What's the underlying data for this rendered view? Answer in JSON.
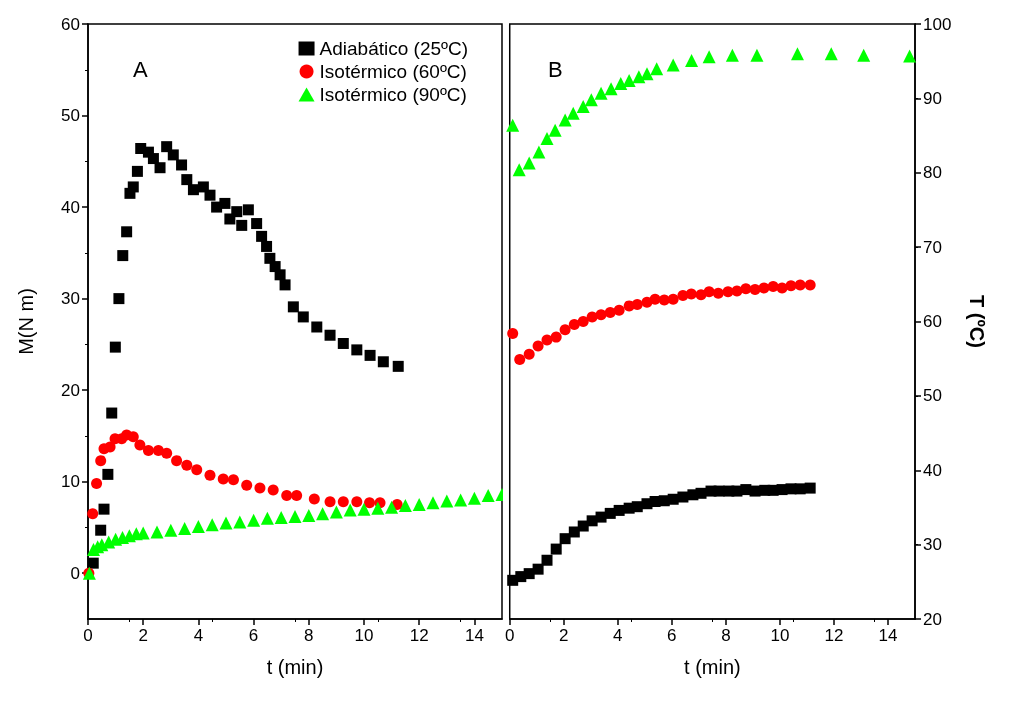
{
  "chart_data": [
    {
      "type": "scatter",
      "xlabel": "t (min)",
      "ylabel": "M(N m)",
      "xlim": [
        0,
        15
      ],
      "xticks": [
        0,
        2,
        4,
        6,
        8,
        10,
        12,
        14
      ],
      "ylim": [
        -5,
        60
      ],
      "yticks": [
        0,
        10,
        20,
        30,
        40,
        50,
        60
      ],
      "grid": false,
      "legend": "top right",
      "annotations": [
        "A"
      ],
      "series": [
        {
          "name": "Adiabático (25ºC)",
          "color": "#000000",
          "marker": "square",
          "x": [
            0.19,
            0.46,
            0.58,
            0.72,
            0.86,
            0.99,
            1.12,
            1.26,
            1.4,
            1.52,
            1.64,
            1.79,
            1.91,
            2.19,
            2.37,
            2.61,
            2.85,
            3.09,
            3.39,
            3.58,
            3.82,
            4.18,
            4.42,
            4.66,
            4.96,
            5.14,
            5.39,
            5.57,
            5.81,
            6.11,
            6.29,
            6.47,
            6.59,
            6.78,
            6.96,
            7.14,
            7.44,
            7.8,
            8.29,
            8.77,
            9.25,
            9.74,
            10.22,
            10.7,
            11.24
          ],
          "values": [
            1.1,
            4.7,
            7.0,
            10.8,
            17.5,
            24.7,
            30.0,
            34.7,
            37.3,
            41.5,
            42.2,
            43.9,
            46.4,
            46.0,
            45.3,
            44.3,
            46.6,
            45.7,
            44.6,
            43.0,
            41.9,
            42.2,
            41.3,
            40.0,
            40.4,
            38.7,
            39.5,
            38.0,
            39.7,
            38.2,
            36.8,
            35.7,
            34.4,
            33.5,
            32.6,
            31.5,
            29.1,
            28.0,
            26.9,
            26.0,
            25.1,
            24.4,
            23.8,
            23.1,
            22.6
          ]
        },
        {
          "name": "Isotérmico (60ºC)",
          "color": "#ff0000",
          "marker": "circle",
          "x": [
            0.03,
            0.17,
            0.31,
            0.46,
            0.58,
            0.8,
            0.98,
            1.22,
            1.4,
            1.64,
            1.88,
            2.19,
            2.55,
            2.85,
            3.21,
            3.58,
            3.94,
            4.42,
            4.9,
            5.27,
            5.75,
            6.23,
            6.71,
            7.2,
            7.56,
            8.2,
            8.77,
            9.25,
            9.74,
            10.2,
            10.58,
            11.2
          ],
          "values": [
            0,
            6.5,
            9.8,
            12.3,
            13.6,
            13.8,
            14.7,
            14.7,
            15.1,
            14.9,
            14.0,
            13.4,
            13.4,
            13.1,
            12.3,
            11.8,
            11.3,
            10.7,
            10.3,
            10.2,
            9.6,
            9.3,
            9.1,
            8.5,
            8.5,
            8.1,
            7.8,
            7.8,
            7.8,
            7.7,
            7.7,
            7.5
          ]
        },
        {
          "name": "Isotérmico (90ºC)",
          "color": "#00ff00",
          "marker": "triangle",
          "x": [
            0.05,
            0.2,
            0.35,
            0.5,
            0.75,
            1,
            1.25,
            1.5,
            1.75,
            2,
            2.5,
            3,
            3.5,
            4,
            4.5,
            5,
            5.5,
            6,
            6.5,
            7,
            7.5,
            8,
            8.5,
            9,
            9.5,
            10,
            10.5,
            11,
            11.5,
            12,
            12.5,
            13,
            13.5,
            14,
            14.5,
            15
          ],
          "values": [
            0,
            2.6,
            2.9,
            3.1,
            3.4,
            3.7,
            3.9,
            4.1,
            4.3,
            4.4,
            4.5,
            4.7,
            4.9,
            5.1,
            5.3,
            5.5,
            5.6,
            5.8,
            6.0,
            6.1,
            6.2,
            6.3,
            6.5,
            6.7,
            6.9,
            7.0,
            7.1,
            7.2,
            7.4,
            7.5,
            7.7,
            7.9,
            8.0,
            8.2,
            8.5,
            8.6
          ]
        }
      ]
    },
    {
      "type": "scatter",
      "xlabel": "t (min)",
      "ylabel": "T (ºC)",
      "xlim": [
        0,
        15
      ],
      "xticks": [
        0,
        2,
        4,
        6,
        8,
        10,
        12,
        14
      ],
      "ylim": [
        20,
        100
      ],
      "yticks": [
        20,
        30,
        40,
        50,
        60,
        70,
        80,
        90,
        100
      ],
      "grid": false,
      "annotations": [
        "B"
      ],
      "series": [
        {
          "color": "#000000",
          "marker": "square",
          "x": [
            0.11,
            0.41,
            0.72,
            1.05,
            1.38,
            1.72,
            2.05,
            2.39,
            2.72,
            3.05,
            3.38,
            3.72,
            4.05,
            4.42,
            4.72,
            5.08,
            5.38,
            5.72,
            6.05,
            6.41,
            6.78,
            7.08,
            7.45,
            7.75,
            8.11,
            8.41,
            8.74,
            9.08,
            9.44,
            9.75,
            10.08,
            10.41,
            10.75,
            11.12
          ],
          "values": [
            25.2,
            25.7,
            26.1,
            26.7,
            27.9,
            29.4,
            30.8,
            31.7,
            32.5,
            33.2,
            33.7,
            34.2,
            34.6,
            34.9,
            35.1,
            35.5,
            35.8,
            35.9,
            36.1,
            36.4,
            36.7,
            36.9,
            37.2,
            37.2,
            37.2,
            37.2,
            37.4,
            37.2,
            37.3,
            37.3,
            37.4,
            37.5,
            37.5,
            37.6
          ]
        },
        {
          "color": "#ff0000",
          "marker": "circle",
          "x": [
            0.11,
            0.37,
            0.72,
            1.05,
            1.38,
            1.72,
            2.05,
            2.39,
            2.72,
            3.05,
            3.38,
            3.72,
            4.05,
            4.42,
            4.72,
            5.08,
            5.38,
            5.72,
            6.05,
            6.41,
            6.72,
            7.08,
            7.38,
            7.72,
            8.08,
            8.41,
            8.74,
            9.08,
            9.41,
            9.75,
            10.08,
            10.41,
            10.75,
            11.12
          ],
          "values": [
            58.4,
            54.9,
            55.6,
            56.7,
            57.5,
            57.9,
            58.9,
            59.6,
            60.0,
            60.6,
            60.9,
            61.2,
            61.5,
            62.1,
            62.3,
            62.6,
            63.0,
            62.9,
            63.0,
            63.5,
            63.7,
            63.6,
            64.0,
            63.8,
            64.0,
            64.1,
            64.4,
            64.3,
            64.5,
            64.7,
            64.5,
            64.8,
            64.9,
            64.9
          ]
        },
        {
          "color": "#00ff00",
          "marker": "triangle",
          "x": [
            0.11,
            0.35,
            0.72,
            1.08,
            1.38,
            1.68,
            2.05,
            2.35,
            2.72,
            3.02,
            3.38,
            3.75,
            4.11,
            4.42,
            4.78,
            5.08,
            5.44,
            6.05,
            6.73,
            7.38,
            8.24,
            9.15,
            10.65,
            11.9,
            13.1,
            14.8
          ],
          "values": [
            86.4,
            80.4,
            81.3,
            82.8,
            84.6,
            85.7,
            87.1,
            88.0,
            88.9,
            89.8,
            90.7,
            91.3,
            92.0,
            92.4,
            92.9,
            93.3,
            94.0,
            94.5,
            95.1,
            95.6,
            95.8,
            95.8,
            96.0,
            96.0,
            95.8,
            95.7
          ]
        }
      ]
    }
  ]
}
